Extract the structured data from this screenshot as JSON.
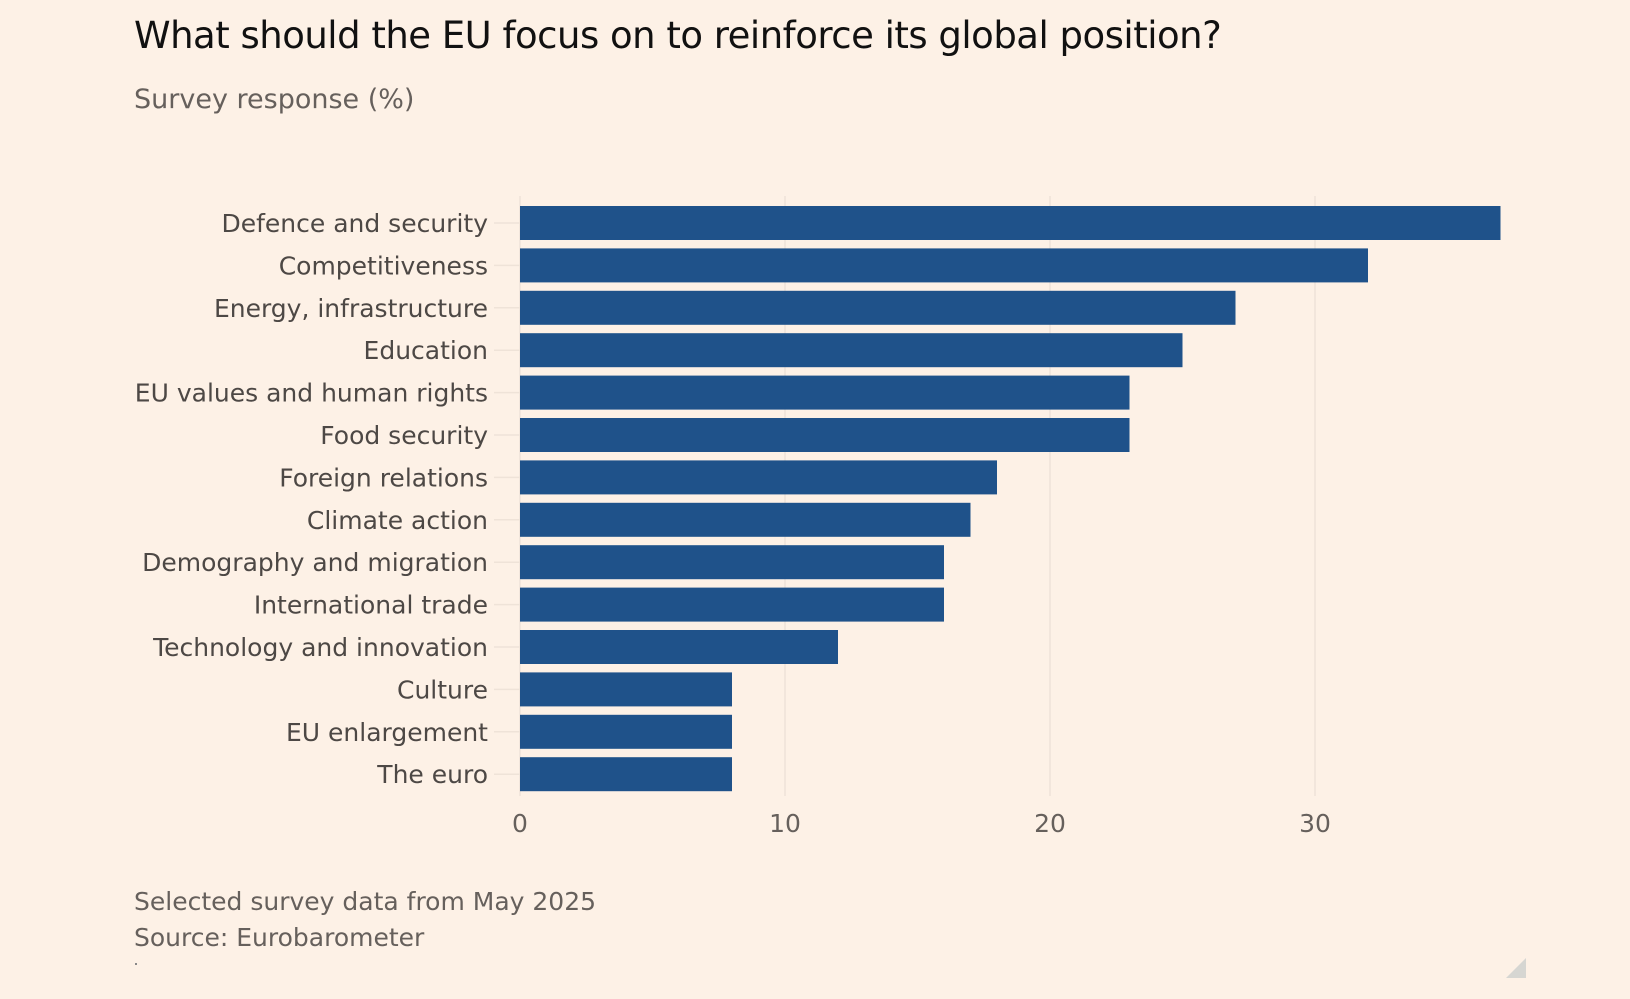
{
  "header": {
    "title": "What should the EU focus on to reinforce its global position?",
    "subtitle": "Survey response (%)"
  },
  "footer": {
    "note": "Selected survey data from May 2025",
    "source": "Source: Eurobarometer"
  },
  "colors": {
    "bar": "#1f528a",
    "background": "#fdf1e6",
    "gridline": "#efe3d8",
    "label_text": "#4d4845",
    "tick_text": "#66605c"
  },
  "chart_data": {
    "type": "bar",
    "orientation": "horizontal",
    "title": "What should the EU focus on to reinforce its global position?",
    "subtitle": "Survey response (%)",
    "xlabel": "",
    "ylabel": "",
    "categories": [
      "Defence and security",
      "Competitiveness",
      "Energy, infrastructure",
      "Education",
      "EU values and human rights",
      "Food security",
      "Foreign relations",
      "Climate action",
      "Demography and migration",
      "International trade",
      "Technology and innovation",
      "Culture",
      "EU enlargement",
      "The euro"
    ],
    "values": [
      37,
      32,
      27,
      25,
      23,
      23,
      18,
      17,
      16,
      16,
      12,
      8,
      8,
      8
    ],
    "xlim": [
      0,
      37
    ],
    "xticks": [
      0,
      10,
      20,
      30
    ],
    "xtick_labels": [
      "0",
      "10",
      "20",
      "30"
    ],
    "grid": true,
    "legend": "none"
  }
}
